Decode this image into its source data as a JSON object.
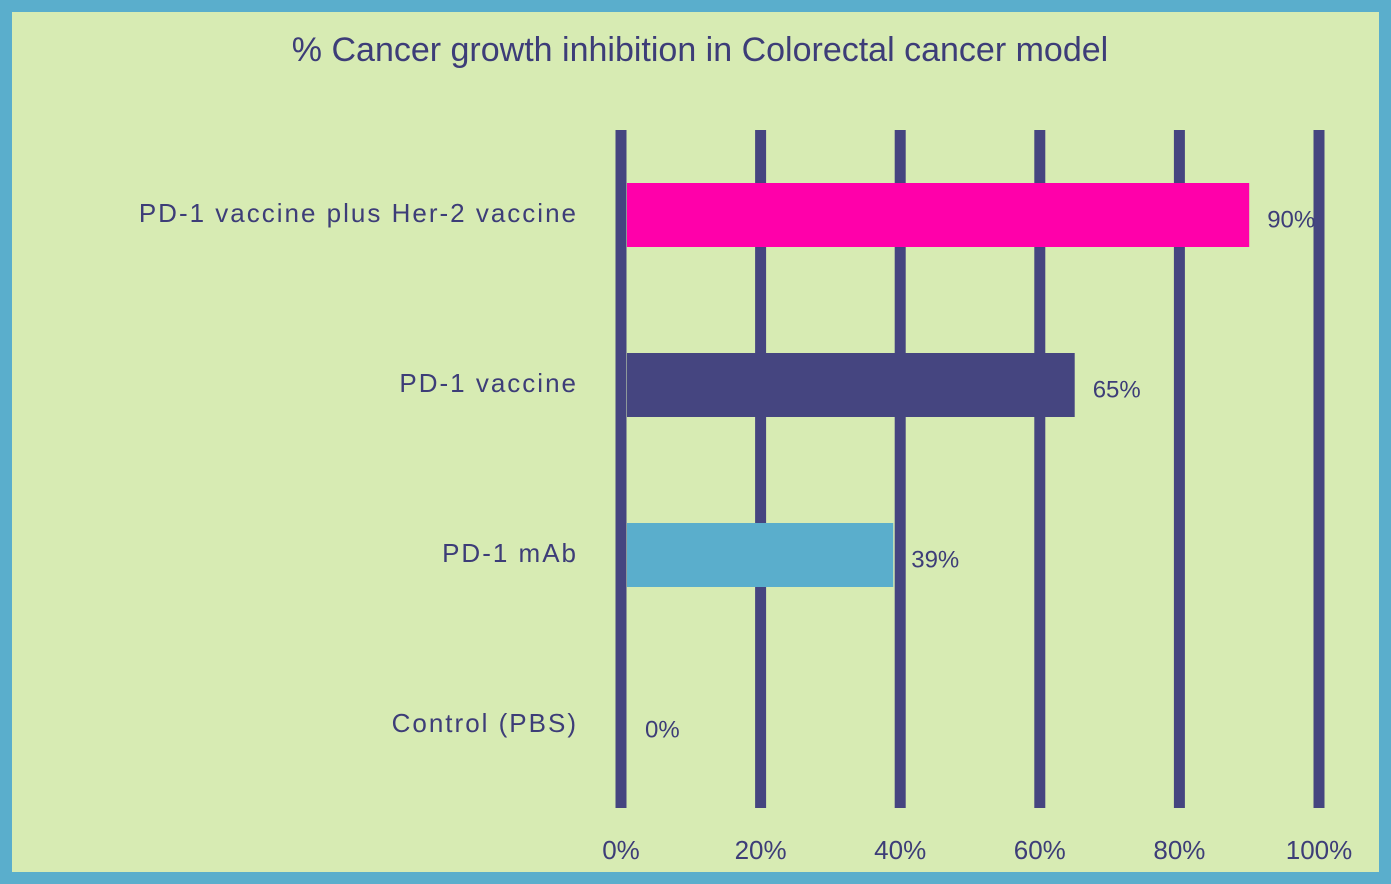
{
  "chart_data": {
    "type": "barh",
    "title": "% Cancer growth inhibition in Colorectal cancer model",
    "categories": [
      "PD-1 vaccine plus Her-2 vaccine",
      "PD-1 vaccine",
      "PD-1 mAb",
      "Control (PBS)"
    ],
    "values": [
      90,
      65,
      39,
      0
    ],
    "value_labels": [
      "90%",
      "65%",
      "39%",
      "0%"
    ],
    "colors": [
      "#ff00aa",
      "#454580",
      "#5aaecc",
      "#454580"
    ],
    "xlim": [
      0,
      100
    ],
    "xticks": [
      {
        "value": 0,
        "label": "0%"
      },
      {
        "value": 20,
        "label": "20%"
      },
      {
        "value": 40,
        "label": "40%"
      },
      {
        "value": 60,
        "label": "60%"
      },
      {
        "value": 80,
        "label": "80%"
      },
      {
        "value": 100,
        "label": "100%"
      }
    ],
    "grid": true
  }
}
